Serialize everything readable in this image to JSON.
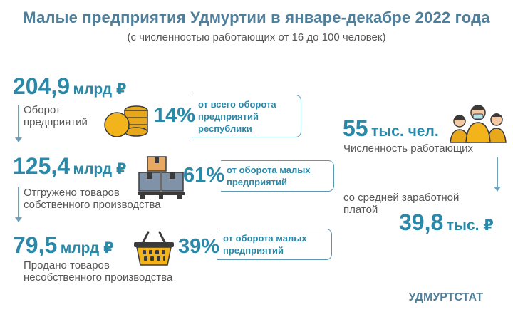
{
  "header": {
    "title": "Малые предприятия Удмуртии в январе-декабре 2022 года",
    "subtitle": "(с численностью работающих от 16 до 100 человек)"
  },
  "turnover": {
    "value": "204,9",
    "unit": "млрд ₽",
    "label_line1": "Оборот",
    "label_line2": "предприятий",
    "percent": "14%",
    "note_line1": "от всего оборота",
    "note_line2": "предприятий",
    "note_line3": "республики"
  },
  "shipped": {
    "value": "125,4",
    "unit": "млрд ₽",
    "label_line1": "Отгружено товаров",
    "label_line2": "собственного производства",
    "percent": "61%",
    "note_line1": "от оборота малых",
    "note_line2": "предприятий"
  },
  "sold": {
    "value": "79,5",
    "unit": "млрд ₽",
    "label_line1": "Продано товаров",
    "label_line2": "несобственного производства",
    "percent": "39%",
    "note_line1": "от оборота малых",
    "note_line2": "предприятий"
  },
  "employees": {
    "value": "55",
    "unit": "тыс. чел.",
    "label": "Численность работающих",
    "salary_label_line1": "со средней заработной",
    "salary_label_line2": "платой",
    "salary_value": "39,8",
    "salary_unit": "тыс. ₽"
  },
  "footer": {
    "brand": "УДМУРТСТАТ"
  },
  "colors": {
    "accent": "#2a89a9",
    "title": "#4f7f9b",
    "text": "#555555"
  },
  "icons": [
    "coins-icon",
    "boxes-icon",
    "basket-icon",
    "people-icon"
  ]
}
